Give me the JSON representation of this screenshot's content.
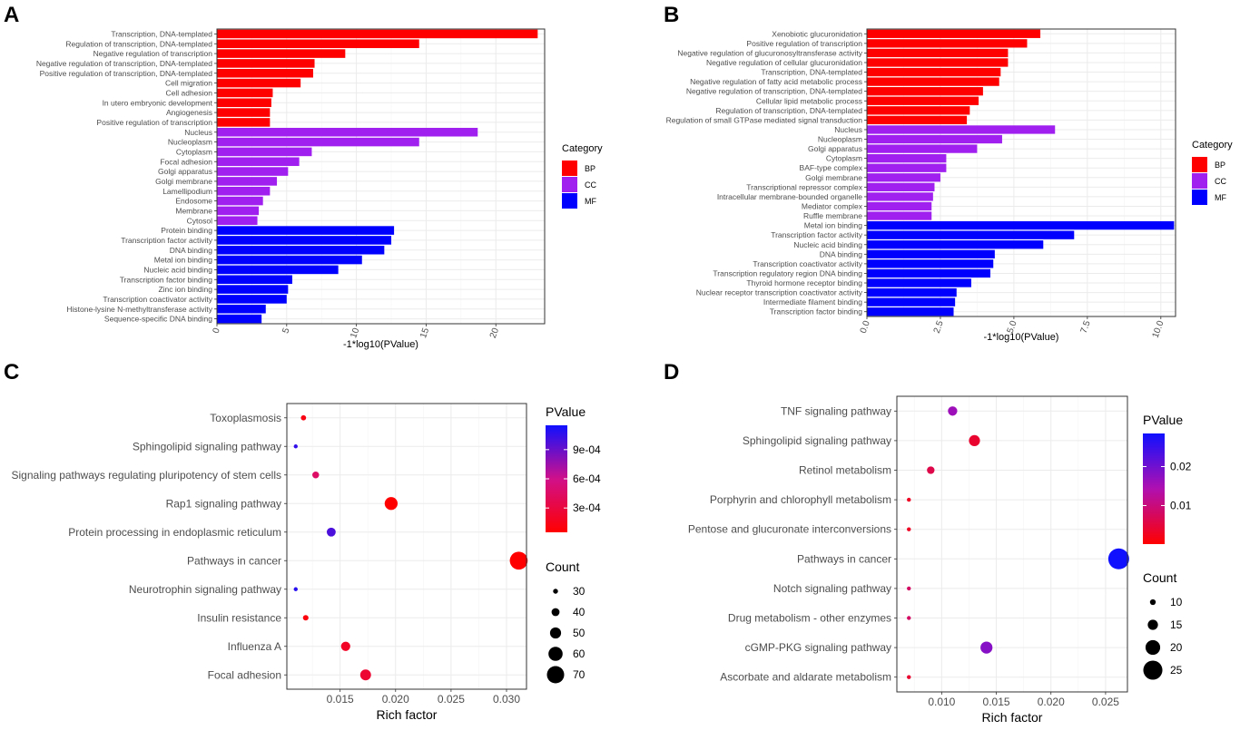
{
  "colors": {
    "BP": "#ff0000",
    "CC": "#a020f0",
    "MF": "#0000ff",
    "grid": "#ebebeb",
    "frame": "#333333"
  },
  "panels": {
    "A": "A",
    "B": "B",
    "C": "C",
    "D": "D"
  },
  "chart_data": [
    {
      "id": "A",
      "type": "bar",
      "orientation": "horizontal",
      "xlabel": "-1*log10(PValue)",
      "xlim": [
        0,
        23.5
      ],
      "xticks": [
        0,
        5,
        10,
        15,
        20
      ],
      "legend_title": "Category",
      "legend": [
        "BP",
        "CC",
        "MF"
      ],
      "bars": [
        {
          "label": "Transcription, DNA-templated",
          "value": 23.0,
          "category": "BP"
        },
        {
          "label": "Regulation of transcription, DNA-templated",
          "value": 14.5,
          "category": "BP"
        },
        {
          "label": "Negative regulation of transcription",
          "value": 9.2,
          "category": "BP"
        },
        {
          "label": "Negative regulation of transcription, DNA-templated",
          "value": 7.0,
          "category": "BP"
        },
        {
          "label": "Positive regulation of transcription, DNA-templated",
          "value": 6.9,
          "category": "BP"
        },
        {
          "label": "Cell migration",
          "value": 6.0,
          "category": "BP"
        },
        {
          "label": "Cell adhesion",
          "value": 4.0,
          "category": "BP"
        },
        {
          "label": "In utero embryonic development",
          "value": 3.9,
          "category": "BP"
        },
        {
          "label": "Angiogenesis",
          "value": 3.8,
          "category": "BP"
        },
        {
          "label": "Positive regulation of transcription",
          "value": 3.8,
          "category": "BP"
        },
        {
          "label": "Nucleus",
          "value": 18.7,
          "category": "CC"
        },
        {
          "label": "Nucleoplasm",
          "value": 14.5,
          "category": "CC"
        },
        {
          "label": "Cytoplasm",
          "value": 6.8,
          "category": "CC"
        },
        {
          "label": "Focal adhesion",
          "value": 5.9,
          "category": "CC"
        },
        {
          "label": "Golgi apparatus",
          "value": 5.1,
          "category": "CC"
        },
        {
          "label": "Golgi membrane",
          "value": 4.3,
          "category": "CC"
        },
        {
          "label": "Lamellipodium",
          "value": 3.8,
          "category": "CC"
        },
        {
          "label": "Endosome",
          "value": 3.3,
          "category": "CC"
        },
        {
          "label": "Membrane",
          "value": 3.0,
          "category": "CC"
        },
        {
          "label": "Cytosol",
          "value": 2.9,
          "category": "CC"
        },
        {
          "label": "Protein binding",
          "value": 12.7,
          "category": "MF"
        },
        {
          "label": "Transcription factor activity",
          "value": 12.5,
          "category": "MF"
        },
        {
          "label": "DNA binding",
          "value": 12.0,
          "category": "MF"
        },
        {
          "label": "Metal ion binding",
          "value": 10.4,
          "category": "MF"
        },
        {
          "label": "Nucleic acid binding",
          "value": 8.7,
          "category": "MF"
        },
        {
          "label": "Transcription factor binding",
          "value": 5.4,
          "category": "MF"
        },
        {
          "label": "Zinc ion binding",
          "value": 5.1,
          "category": "MF"
        },
        {
          "label": "Transcription coactivator activity",
          "value": 5.0,
          "category": "MF"
        },
        {
          "label": "Histone-lysine N-methyltransferase activity",
          "value": 3.5,
          "category": "MF"
        },
        {
          "label": "Sequence-specific DNA binding",
          "value": 3.2,
          "category": "MF"
        }
      ]
    },
    {
      "id": "B",
      "type": "bar",
      "orientation": "horizontal",
      "xlabel": "-1*log10(PValue)",
      "xlim": [
        0,
        10.5
      ],
      "xticks": [
        0.0,
        2.5,
        5.0,
        7.5,
        10.0
      ],
      "legend_title": "Category",
      "legend": [
        "BP",
        "CC",
        "MF"
      ],
      "bars": [
        {
          "label": "Xenobiotic glucuronidation",
          "value": 5.9,
          "category": "BP"
        },
        {
          "label": "Positive regulation of transcription",
          "value": 5.45,
          "category": "BP"
        },
        {
          "label": "Negative regulation of glucuronosyltransferase activity",
          "value": 4.8,
          "category": "BP"
        },
        {
          "label": "Negative regulation of cellular glucuronidation",
          "value": 4.8,
          "category": "BP"
        },
        {
          "label": "Transcription, DNA-templated",
          "value": 4.55,
          "category": "BP"
        },
        {
          "label": "Negative regulation of fatty acid metabolic process",
          "value": 4.5,
          "category": "BP"
        },
        {
          "label": "Negative regulation of transcription, DNA-templated",
          "value": 3.95,
          "category": "BP"
        },
        {
          "label": "Cellular lipid metabolic process",
          "value": 3.8,
          "category": "BP"
        },
        {
          "label": "Regulation of transcription, DNA-templated",
          "value": 3.5,
          "category": "BP"
        },
        {
          "label": "Regulation of small GTPase mediated signal transduction",
          "value": 3.4,
          "category": "BP"
        },
        {
          "label": "Nucleus",
          "value": 6.4,
          "category": "CC"
        },
        {
          "label": "Nucleoplasm",
          "value": 4.6,
          "category": "CC"
        },
        {
          "label": "Golgi apparatus",
          "value": 3.75,
          "category": "CC"
        },
        {
          "label": "Cytoplasm",
          "value": 2.7,
          "category": "CC"
        },
        {
          "label": "BAF-type complex",
          "value": 2.7,
          "category": "CC"
        },
        {
          "label": "Golgi membrane",
          "value": 2.5,
          "category": "CC"
        },
        {
          "label": "Transcriptional repressor complex",
          "value": 2.3,
          "category": "CC"
        },
        {
          "label": "Intracellular membrane-bounded organelle",
          "value": 2.25,
          "category": "CC"
        },
        {
          "label": "Mediator complex",
          "value": 2.2,
          "category": "CC"
        },
        {
          "label": "Ruffle membrane",
          "value": 2.2,
          "category": "CC"
        },
        {
          "label": "Metal ion binding",
          "value": 10.45,
          "category": "MF"
        },
        {
          "label": "Transcription factor activity",
          "value": 7.05,
          "category": "MF"
        },
        {
          "label": "Nucleic acid binding",
          "value": 6.0,
          "category": "MF"
        },
        {
          "label": "DNA binding",
          "value": 4.35,
          "category": "MF"
        },
        {
          "label": "Transcription coactivator activity",
          "value": 4.3,
          "category": "MF"
        },
        {
          "label": "Transcription regulatory region DNA binding",
          "value": 4.2,
          "category": "MF"
        },
        {
          "label": "Thyroid hormone receptor binding",
          "value": 3.55,
          "category": "MF"
        },
        {
          "label": "Nuclear receptor transcription coactivator activity",
          "value": 3.05,
          "category": "MF"
        },
        {
          "label": "Intermediate filament binding",
          "value": 3.0,
          "category": "MF"
        },
        {
          "label": "Transcription factor binding",
          "value": 2.95,
          "category": "MF"
        }
      ]
    },
    {
      "id": "C",
      "type": "scatter",
      "subtype": "bubble",
      "xlabel": "Rich factor",
      "xlim": [
        0.0102,
        0.0318
      ],
      "xticks": [
        0.015,
        0.02,
        0.025,
        0.03
      ],
      "xtick_labels": [
        "0.015",
        "0.020",
        "0.025",
        "0.030"
      ],
      "color_legend_title": "PValue",
      "color_range": [
        5e-05,
        0.00115
      ],
      "color_ticks": [
        0.0003,
        0.0006,
        0.0009
      ],
      "color_tick_labels": [
        "3e-04",
        "6e-04",
        "9e-04"
      ],
      "size_legend_title": "Count",
      "size_legend": [
        30,
        40,
        50,
        60,
        70
      ],
      "points": [
        {
          "label": "Toxoplasmosis",
          "x": 0.0117,
          "count": 31,
          "p": 0.00012
        },
        {
          "label": "Sphingolipid signaling pathway",
          "x": 0.011,
          "count": 27,
          "p": 0.00105
        },
        {
          "label": "Signaling pathways regulating pluripotency of stem cells",
          "x": 0.0128,
          "count": 36,
          "p": 0.00045
        },
        {
          "label": "Rap1 signaling pathway",
          "x": 0.0196,
          "count": 56,
          "p": 5e-05
        },
        {
          "label": "Protein processing in endoplasmic reticulum",
          "x": 0.0142,
          "count": 43,
          "p": 0.00098
        },
        {
          "label": "Pathways in cancer",
          "x": 0.0311,
          "count": 72,
          "p": 2e-05
        },
        {
          "label": "Neurotrophin signaling pathway",
          "x": 0.011,
          "count": 27,
          "p": 0.00108
        },
        {
          "label": "Insulin resistance",
          "x": 0.0119,
          "count": 32,
          "p": 0.0001
        },
        {
          "label": "Influenza A",
          "x": 0.0155,
          "count": 44,
          "p": 0.0002
        },
        {
          "label": "Focal adhesion",
          "x": 0.0173,
          "count": 49,
          "p": 0.00025
        }
      ]
    },
    {
      "id": "D",
      "type": "scatter",
      "subtype": "bubble",
      "xlabel": "Rich factor",
      "xlim": [
        0.0059,
        0.027
      ],
      "xticks": [
        0.01,
        0.015,
        0.02,
        0.025
      ],
      "xtick_labels": [
        "0.010",
        "0.015",
        "0.020",
        "0.025"
      ],
      "color_legend_title": "PValue",
      "color_range": [
        0.0001,
        0.0285
      ],
      "color_ticks": [
        0.01,
        0.02
      ],
      "color_tick_labels": [
        "0.01",
        "0.02"
      ],
      "size_legend_title": "Count",
      "size_legend": [
        10,
        15,
        20,
        25
      ],
      "points": [
        {
          "label": "TNF signaling pathway",
          "x": 0.011,
          "count": 14,
          "p": 0.016
        },
        {
          "label": "Sphingolipid signaling pathway",
          "x": 0.013,
          "count": 16,
          "p": 0.004
        },
        {
          "label": "Retinol metabolism",
          "x": 0.009,
          "count": 12,
          "p": 0.006
        },
        {
          "label": "Porphyrin and chlorophyll metabolism",
          "x": 0.007,
          "count": 8,
          "p": 0.003
        },
        {
          "label": "Pentose and glucuronate interconversions",
          "x": 0.007,
          "count": 8,
          "p": 0.003
        },
        {
          "label": "Pathways in cancer",
          "x": 0.0262,
          "count": 27,
          "p": 0.0285
        },
        {
          "label": "Notch signaling pathway",
          "x": 0.007,
          "count": 8,
          "p": 0.008
        },
        {
          "label": "Drug metabolism - other enzymes",
          "x": 0.007,
          "count": 8,
          "p": 0.008
        },
        {
          "label": "cGMP-PKG signaling pathway",
          "x": 0.0141,
          "count": 17,
          "p": 0.018
        },
        {
          "label": "Ascorbate and aldarate metabolism",
          "x": 0.007,
          "count": 8,
          "p": 0.004
        }
      ]
    }
  ]
}
